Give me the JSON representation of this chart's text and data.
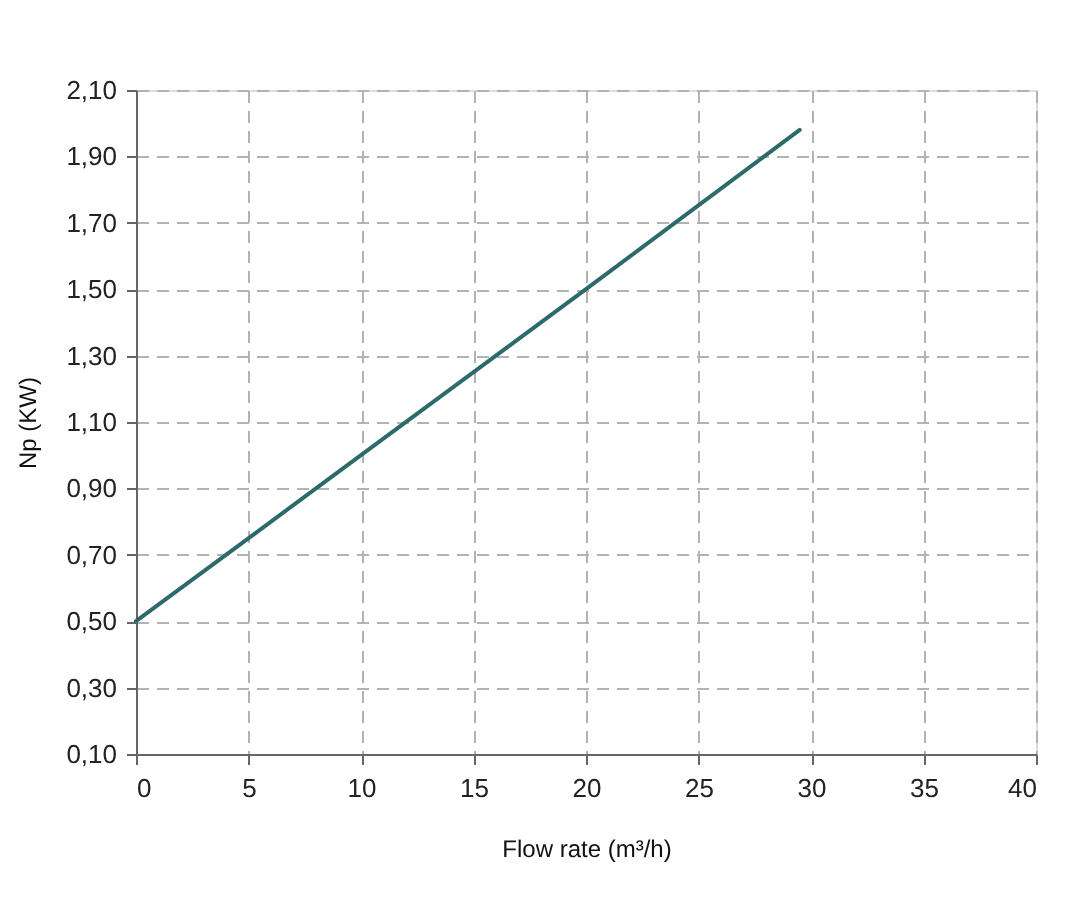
{
  "chart_data": {
    "type": "line",
    "xlabel": "Flow rate (m³/h)",
    "ylabel": "Np (KW)",
    "x": [
      0,
      10,
      20,
      29.5
    ],
    "series": [
      {
        "color": "#2d6a6a",
        "values": [
          0.5,
          1.0,
          1.5,
          1.98
        ]
      }
    ],
    "xlim": [
      0,
      40
    ],
    "xticks": [
      0,
      5,
      10,
      15,
      20,
      25,
      30,
      35,
      40
    ],
    "ylim": [
      0.1,
      2.1
    ],
    "yticks": [
      {
        "value": 0.1,
        "label": "0,10"
      },
      {
        "value": 0.3,
        "label": "0,30"
      },
      {
        "value": 0.5,
        "label": "0,50"
      },
      {
        "value": 0.7,
        "label": "0,70"
      },
      {
        "value": 0.9,
        "label": "0,90"
      },
      {
        "value": 1.1,
        "label": "1,10"
      },
      {
        "value": 1.3,
        "label": "1,30"
      },
      {
        "value": 1.5,
        "label": "1,50"
      },
      {
        "value": 1.7,
        "label": "1,70"
      },
      {
        "value": 1.9,
        "label": "1,90"
      },
      {
        "value": 2.1,
        "label": "2,10"
      }
    ],
    "grid": true,
    "line_style": "solid"
  }
}
